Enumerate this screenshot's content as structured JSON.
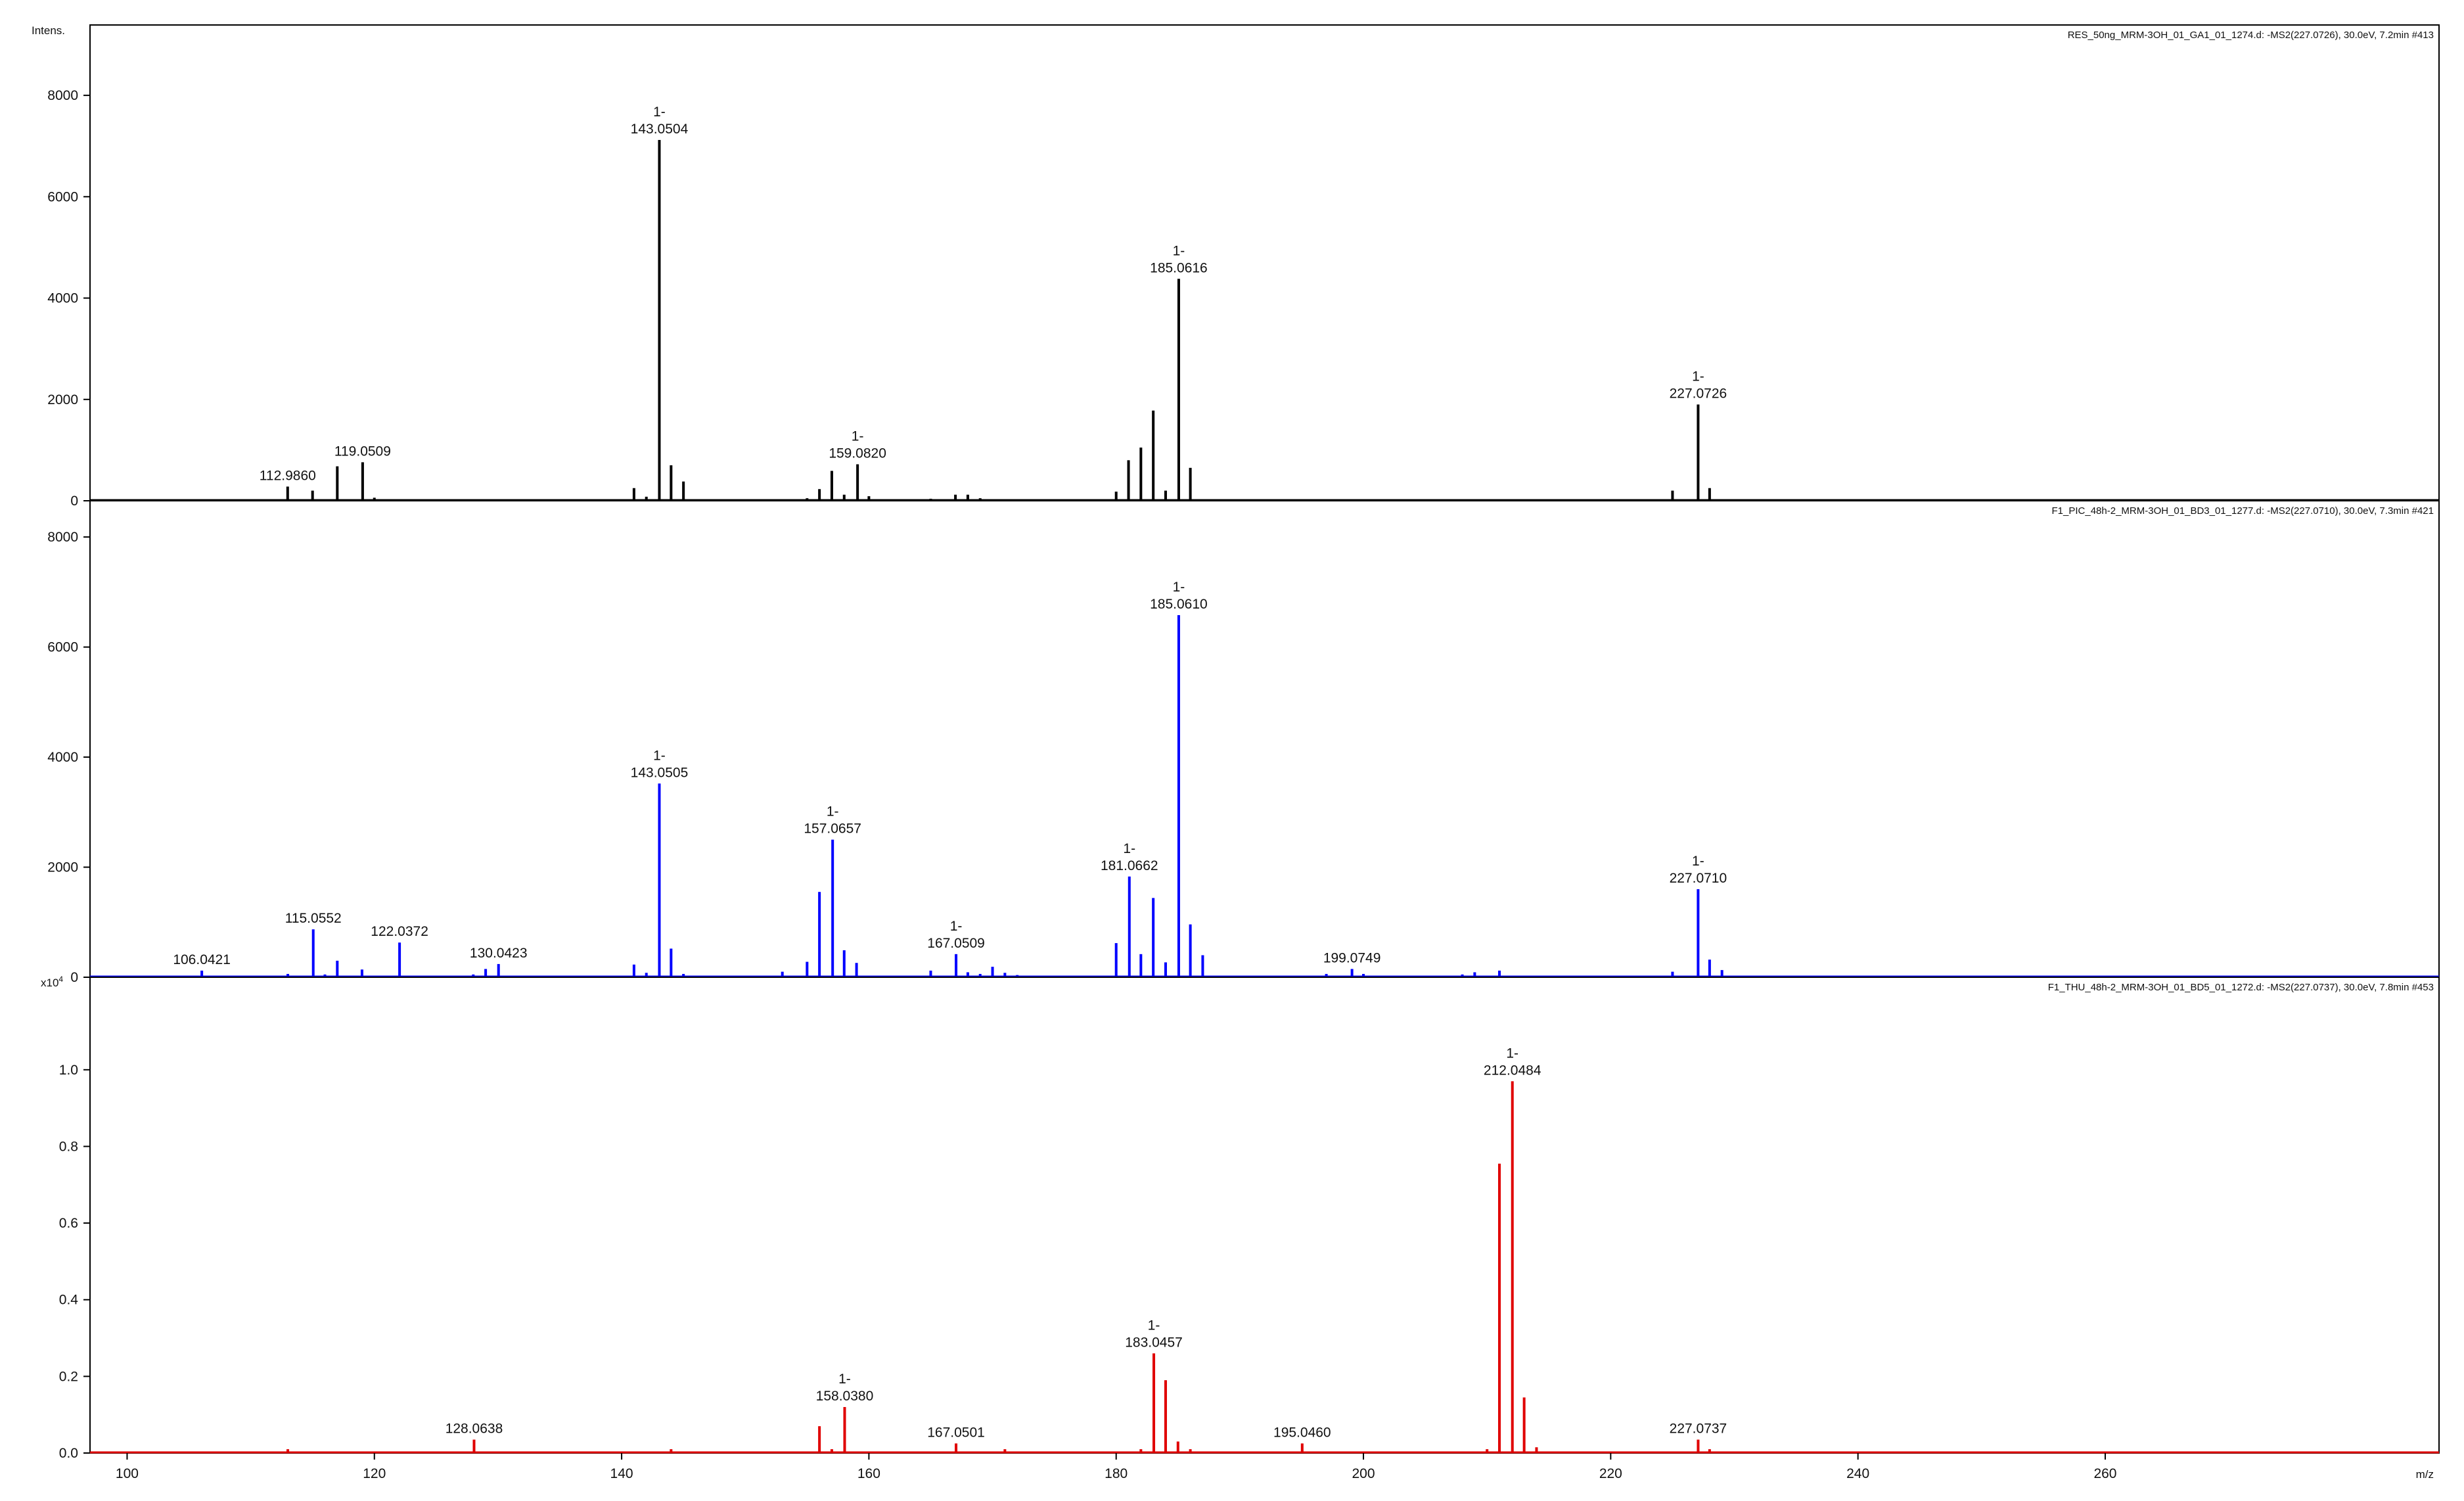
{
  "chart_data": [
    {
      "type": "bar",
      "subtype": "mass-spectrum",
      "header": "RES_50ng_MRM-3OH_01_GA1_01_1274.d: -MS2(227.0726), 30.0eV, 7.2min #413",
      "ylabel": "Intens.",
      "color": "#000000",
      "xlim": [
        97,
        287
      ],
      "ylim": [
        0,
        9000
      ],
      "y_ticks": [
        0,
        2000,
        4000,
        6000,
        8000
      ],
      "y_tick_labels": [
        "0",
        "2000",
        "4000",
        "6000",
        "8000"
      ],
      "peaks": [
        {
          "mz": 112.986,
          "intensity": 280
        },
        {
          "mz": 115.0,
          "intensity": 200
        },
        {
          "mz": 117.0,
          "intensity": 680
        },
        {
          "mz": 119.0509,
          "intensity": 760
        },
        {
          "mz": 120.0,
          "intensity": 60
        },
        {
          "mz": 141.0,
          "intensity": 250
        },
        {
          "mz": 142.0,
          "intensity": 80
        },
        {
          "mz": 143.0504,
          "intensity": 7120
        },
        {
          "mz": 144.0,
          "intensity": 700
        },
        {
          "mz": 145.0,
          "intensity": 380
        },
        {
          "mz": 155.0,
          "intensity": 50
        },
        {
          "mz": 156.0,
          "intensity": 230
        },
        {
          "mz": 157.0,
          "intensity": 590
        },
        {
          "mz": 158.0,
          "intensity": 120
        },
        {
          "mz": 159.082,
          "intensity": 720
        },
        {
          "mz": 160.0,
          "intensity": 90
        },
        {
          "mz": 165.0,
          "intensity": 40
        },
        {
          "mz": 167.0,
          "intensity": 120
        },
        {
          "mz": 168.0,
          "intensity": 120
        },
        {
          "mz": 169.0,
          "intensity": 50
        },
        {
          "mz": 180.0,
          "intensity": 180
        },
        {
          "mz": 181.0,
          "intensity": 800
        },
        {
          "mz": 182.0,
          "intensity": 1050
        },
        {
          "mz": 183.0,
          "intensity": 1780
        },
        {
          "mz": 184.0,
          "intensity": 200
        },
        {
          "mz": 185.0616,
          "intensity": 4380
        },
        {
          "mz": 186.0,
          "intensity": 650
        },
        {
          "mz": 225.0,
          "intensity": 200
        },
        {
          "mz": 227.0726,
          "intensity": 1900
        },
        {
          "mz": 228.0,
          "intensity": 250
        }
      ],
      "labels": [
        {
          "mz": 112.986,
          "prefix": "",
          "text": "112.9860"
        },
        {
          "mz": 119.0509,
          "prefix": "",
          "text": "119.0509"
        },
        {
          "mz": 143.0504,
          "prefix": "1-",
          "text": "143.0504"
        },
        {
          "mz": 159.082,
          "prefix": "1-",
          "text": "159.0820"
        },
        {
          "mz": 185.0616,
          "prefix": "1-",
          "text": "185.0616"
        },
        {
          "mz": 227.0726,
          "prefix": "1-",
          "text": "227.0726"
        }
      ]
    },
    {
      "type": "bar",
      "subtype": "mass-spectrum",
      "header": "F1_PIC_48h-2_MRM-3OH_01_BD3_01_1277.d: -MS2(227.0710), 30.0eV, 7.3min #421",
      "ylabel": "",
      "color": "#0000ff",
      "xlim": [
        97,
        287
      ],
      "ylim": [
        0,
        8300
      ],
      "y_ticks": [
        0,
        2000,
        4000,
        6000,
        8000
      ],
      "y_tick_labels": [
        "0",
        "2000",
        "4000",
        "6000",
        "8000"
      ],
      "peaks": [
        {
          "mz": 106.0421,
          "intensity": 120
        },
        {
          "mz": 113.0,
          "intensity": 60
        },
        {
          "mz": 115.0552,
          "intensity": 870
        },
        {
          "mz": 116.0,
          "intensity": 50
        },
        {
          "mz": 117.0,
          "intensity": 300
        },
        {
          "mz": 119.0,
          "intensity": 140
        },
        {
          "mz": 122.0372,
          "intensity": 630
        },
        {
          "mz": 128.0,
          "intensity": 50
        },
        {
          "mz": 129.0,
          "intensity": 150
        },
        {
          "mz": 130.0423,
          "intensity": 240
        },
        {
          "mz": 141.0,
          "intensity": 230
        },
        {
          "mz": 142.0,
          "intensity": 80
        },
        {
          "mz": 143.0505,
          "intensity": 3520
        },
        {
          "mz": 144.0,
          "intensity": 520
        },
        {
          "mz": 145.0,
          "intensity": 60
        },
        {
          "mz": 153.0,
          "intensity": 100
        },
        {
          "mz": 155.0,
          "intensity": 280
        },
        {
          "mz": 156.0,
          "intensity": 1550
        },
        {
          "mz": 157.0657,
          "intensity": 2500
        },
        {
          "mz": 158.0,
          "intensity": 490
        },
        {
          "mz": 159.0,
          "intensity": 260
        },
        {
          "mz": 165.0,
          "intensity": 120
        },
        {
          "mz": 167.0509,
          "intensity": 420
        },
        {
          "mz": 168.0,
          "intensity": 90
        },
        {
          "mz": 169.0,
          "intensity": 60
        },
        {
          "mz": 170.0,
          "intensity": 190
        },
        {
          "mz": 171.0,
          "intensity": 80
        },
        {
          "mz": 172.0,
          "intensity": 40
        },
        {
          "mz": 180.0,
          "intensity": 620
        },
        {
          "mz": 181.0662,
          "intensity": 1830
        },
        {
          "mz": 182.0,
          "intensity": 420
        },
        {
          "mz": 183.0,
          "intensity": 1440
        },
        {
          "mz": 184.0,
          "intensity": 270
        },
        {
          "mz": 185.061,
          "intensity": 6580
        },
        {
          "mz": 186.0,
          "intensity": 960
        },
        {
          "mz": 187.0,
          "intensity": 400
        },
        {
          "mz": 197.0,
          "intensity": 60
        },
        {
          "mz": 199.0749,
          "intensity": 150
        },
        {
          "mz": 200.0,
          "intensity": 60
        },
        {
          "mz": 208.0,
          "intensity": 50
        },
        {
          "mz": 209.0,
          "intensity": 90
        },
        {
          "mz": 211.0,
          "intensity": 120
        },
        {
          "mz": 225.0,
          "intensity": 100
        },
        {
          "mz": 227.071,
          "intensity": 1600
        },
        {
          "mz": 228.0,
          "intensity": 320
        },
        {
          "mz": 229.0,
          "intensity": 130
        }
      ],
      "labels": [
        {
          "mz": 106.0421,
          "prefix": "",
          "text": "106.0421"
        },
        {
          "mz": 115.0552,
          "prefix": "",
          "text": "115.0552"
        },
        {
          "mz": 122.0372,
          "prefix": "",
          "text": "122.0372"
        },
        {
          "mz": 130.0423,
          "prefix": "",
          "text": "130.0423"
        },
        {
          "mz": 143.0505,
          "prefix": "1-",
          "text": "143.0505"
        },
        {
          "mz": 157.0657,
          "prefix": "1-",
          "text": "157.0657"
        },
        {
          "mz": 167.0509,
          "prefix": "1-",
          "text": "167.0509"
        },
        {
          "mz": 181.0662,
          "prefix": "1-",
          "text": "181.0662"
        },
        {
          "mz": 185.061,
          "prefix": "1-",
          "text": "185.0610"
        },
        {
          "mz": 199.0749,
          "prefix": "",
          "text": "199.0749"
        },
        {
          "mz": 227.071,
          "prefix": "1-",
          "text": "227.0710"
        }
      ]
    },
    {
      "type": "bar",
      "subtype": "mass-spectrum",
      "header": "F1_THU_48h-2_MRM-3OH_01_BD5_01_1272.d: -MS2(227.0737), 30.0eV, 7.8min #453",
      "ylabel": "",
      "y_scale_label": "x10",
      "y_scale_exponent": "4",
      "color": "#e00000",
      "xlim": [
        97,
        287
      ],
      "ylim": [
        0,
        1.19
      ],
      "y_ticks": [
        0,
        0.2,
        0.4,
        0.6,
        0.8,
        1.0
      ],
      "y_tick_labels": [
        "0.0",
        "0.2",
        "0.4",
        "0.6",
        "0.8",
        "1.0"
      ],
      "x_ticks": [
        100,
        120,
        140,
        160,
        180,
        200,
        220,
        240,
        260
      ],
      "x_tick_labels": [
        "100",
        "120",
        "140",
        "160",
        "180",
        "200",
        "220",
        "240",
        "260"
      ],
      "xlabel": "m/z",
      "peaks": [
        {
          "mz": 113.0,
          "intensity": 0.01
        },
        {
          "mz": 128.0638,
          "intensity": 0.035
        },
        {
          "mz": 144.0,
          "intensity": 0.01
        },
        {
          "mz": 156.0,
          "intensity": 0.07
        },
        {
          "mz": 157.0,
          "intensity": 0.01
        },
        {
          "mz": 158.038,
          "intensity": 0.12
        },
        {
          "mz": 167.0501,
          "intensity": 0.025
        },
        {
          "mz": 171.0,
          "intensity": 0.01
        },
        {
          "mz": 182.0,
          "intensity": 0.01
        },
        {
          "mz": 183.0457,
          "intensity": 0.26
        },
        {
          "mz": 184.0,
          "intensity": 0.19
        },
        {
          "mz": 185.0,
          "intensity": 0.03
        },
        {
          "mz": 186.0,
          "intensity": 0.01
        },
        {
          "mz": 195.046,
          "intensity": 0.025
        },
        {
          "mz": 210.0,
          "intensity": 0.01
        },
        {
          "mz": 211.0,
          "intensity": 0.755
        },
        {
          "mz": 212.0484,
          "intensity": 0.97
        },
        {
          "mz": 213.0,
          "intensity": 0.145
        },
        {
          "mz": 214.0,
          "intensity": 0.015
        },
        {
          "mz": 227.0737,
          "intensity": 0.035
        },
        {
          "mz": 228.0,
          "intensity": 0.01
        }
      ],
      "labels": [
        {
          "mz": 128.0638,
          "prefix": "",
          "text": "128.0638"
        },
        {
          "mz": 158.038,
          "prefix": "1-",
          "text": "158.0380"
        },
        {
          "mz": 167.0501,
          "prefix": "",
          "text": "167.0501"
        },
        {
          "mz": 183.0457,
          "prefix": "1-",
          "text": "183.0457"
        },
        {
          "mz": 195.046,
          "prefix": "",
          "text": "195.0460"
        },
        {
          "mz": 212.0484,
          "prefix": "1-",
          "text": "212.0484"
        },
        {
          "mz": 227.0737,
          "prefix": "",
          "text": "227.0737"
        }
      ]
    }
  ]
}
